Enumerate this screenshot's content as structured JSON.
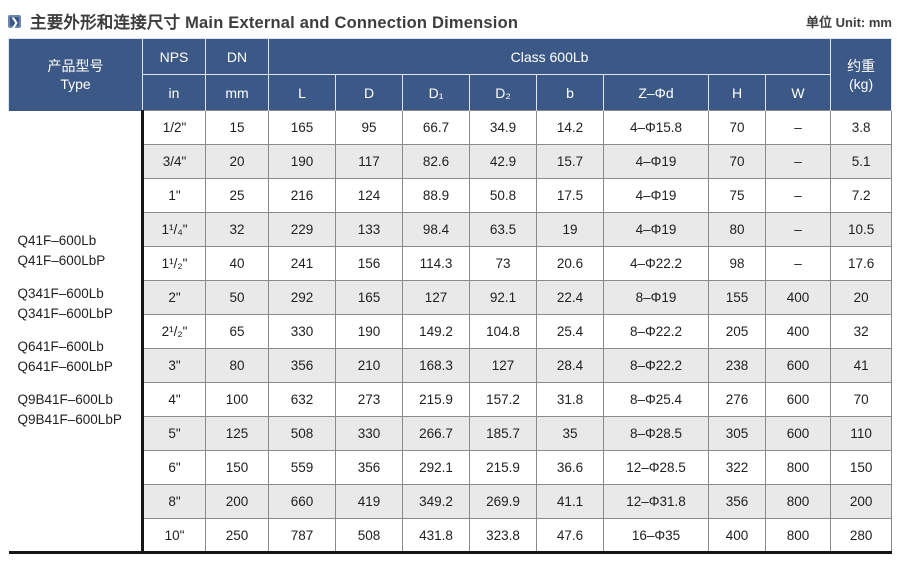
{
  "page": {
    "title": "主要外形和连接尺寸 Main External and Connection Dimension",
    "unit": "单位 Unit: mm",
    "accent_color": "#3c5886",
    "stripe_color": "#e9e9e9",
    "chevron_icon": "❯"
  },
  "table": {
    "header": {
      "type": [
        "产品型号",
        "Type"
      ],
      "nps": "NPS",
      "nps_unit": "in",
      "dn": "DN",
      "dn_unit": "mm",
      "class_label": "Class 600Lb",
      "dims": [
        "L",
        "D",
        "D₁",
        "D₂",
        "b",
        "Z–Φd",
        "H",
        "W"
      ],
      "weight": [
        "约重",
        "(kg)"
      ]
    },
    "product_types": [
      [
        "Q41F–600Lb",
        "Q41F–600LbP"
      ],
      [
        "Q341F–600Lb",
        "Q341F–600LbP"
      ],
      [
        "Q641F–600Lb",
        "Q641F–600LbP"
      ],
      [
        "Q9B41F–600Lb",
        "Q9B41F–600LbP"
      ]
    ],
    "rows": [
      [
        "1/2\"",
        "15",
        "165",
        "95",
        "66.7",
        "34.9",
        "14.2",
        "4–Φ15.8",
        "70",
        "–",
        "3.8"
      ],
      [
        "3/4\"",
        "20",
        "190",
        "117",
        "82.6",
        "42.9",
        "15.7",
        "4–Φ19",
        "70",
        "–",
        "5.1"
      ],
      [
        "1\"",
        "25",
        "216",
        "124",
        "88.9",
        "50.8",
        "17.5",
        "4–Φ19",
        "75",
        "–",
        "7.2"
      ],
      [
        "1¹/₄\"",
        "32",
        "229",
        "133",
        "98.4",
        "63.5",
        "19",
        "4–Φ19",
        "80",
        "–",
        "10.5"
      ],
      [
        "1¹/₂\"",
        "40",
        "241",
        "156",
        "114.3",
        "73",
        "20.6",
        "4–Φ22.2",
        "98",
        "–",
        "17.6"
      ],
      [
        "2\"",
        "50",
        "292",
        "165",
        "127",
        "92.1",
        "22.4",
        "8–Φ19",
        "155",
        "400",
        "20"
      ],
      [
        "2¹/₂\"",
        "65",
        "330",
        "190",
        "149.2",
        "104.8",
        "25.4",
        "8–Φ22.2",
        "205",
        "400",
        "32"
      ],
      [
        "3\"",
        "80",
        "356",
        "210",
        "168.3",
        "127",
        "28.4",
        "8–Φ22.2",
        "238",
        "600",
        "41"
      ],
      [
        "4\"",
        "100",
        "632",
        "273",
        "215.9",
        "157.2",
        "31.8",
        "8–Φ25.4",
        "276",
        "600",
        "70"
      ],
      [
        "5\"",
        "125",
        "508",
        "330",
        "266.7",
        "185.7",
        "35",
        "8–Φ28.5",
        "305",
        "600",
        "110"
      ],
      [
        "6\"",
        "150",
        "559",
        "356",
        "292.1",
        "215.9",
        "36.6",
        "12–Φ28.5",
        "322",
        "800",
        "150"
      ],
      [
        "8\"",
        "200",
        "660",
        "419",
        "349.2",
        "269.9",
        "41.1",
        "12–Φ31.8",
        "356",
        "800",
        "200"
      ],
      [
        "10\"",
        "250",
        "787",
        "508",
        "431.8",
        "323.8",
        "47.6",
        "16–Φ35",
        "400",
        "800",
        "280"
      ]
    ]
  }
}
